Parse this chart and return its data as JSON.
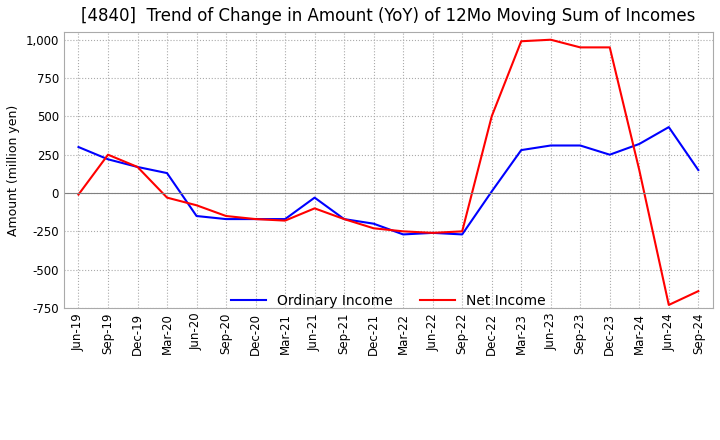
{
  "title": "[4840]  Trend of Change in Amount (YoY) of 12Mo Moving Sum of Incomes",
  "ylabel": "Amount (million yen)",
  "ylim": [
    -750,
    1050
  ],
  "yticks": [
    -750,
    -500,
    -250,
    0,
    250,
    500,
    750,
    1000
  ],
  "x_labels": [
    "Jun-19",
    "Sep-19",
    "Dec-19",
    "Mar-20",
    "Jun-20",
    "Sep-20",
    "Dec-20",
    "Mar-21",
    "Jun-21",
    "Sep-21",
    "Dec-21",
    "Mar-22",
    "Jun-22",
    "Sep-22",
    "Dec-22",
    "Mar-23",
    "Jun-23",
    "Sep-23",
    "Dec-23",
    "Mar-24",
    "Jun-24",
    "Sep-24"
  ],
  "ordinary_income": [
    300,
    220,
    170,
    130,
    -150,
    -170,
    -170,
    -170,
    -30,
    -170,
    -200,
    -270,
    -260,
    -270,
    10,
    280,
    310,
    310,
    250,
    320,
    430,
    150
  ],
  "net_income": [
    -10,
    250,
    170,
    -30,
    -80,
    -150,
    -170,
    -180,
    -100,
    -170,
    -230,
    -250,
    -260,
    -250,
    500,
    990,
    1000,
    950,
    950,
    150,
    -730,
    -640
  ],
  "ordinary_color": "#0000ff",
  "net_color": "#ff0000",
  "grid_color": "#aaaaaa",
  "background_color": "#ffffff",
  "title_fontsize": 12,
  "label_fontsize": 9,
  "tick_fontsize": 8.5,
  "legend_fontsize": 10
}
